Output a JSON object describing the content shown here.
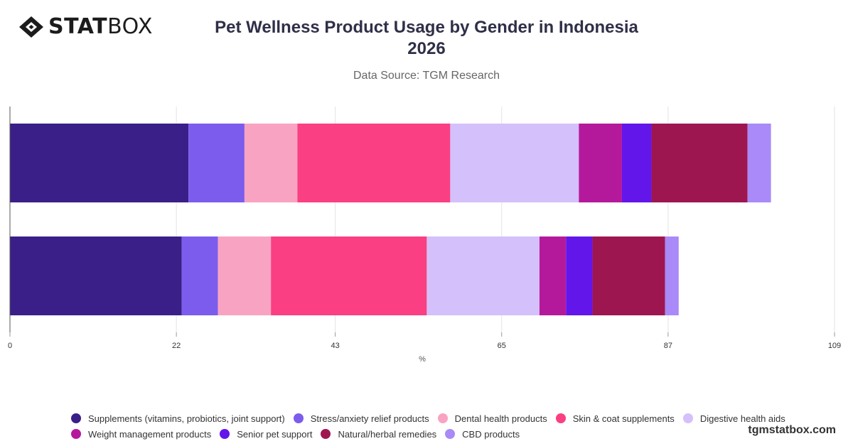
{
  "brand": {
    "stat": "STAT",
    "box": "BOX"
  },
  "header": {
    "title": "Pet Wellness Product Usage by Gender in Indonesia",
    "year": "2026",
    "subtitle": "Data Source: TGM Research"
  },
  "footer": {
    "site": "tgmstatbox.com"
  },
  "chart_data": {
    "type": "bar",
    "orientation": "horizontal",
    "stacked": true,
    "categories": [
      "",
      ""
    ],
    "xlabel": "%",
    "xlim": [
      0,
      109
    ],
    "xticks": [
      "0",
      "22",
      "43",
      "65",
      "87",
      "109"
    ],
    "grid": true,
    "legend_position": "bottom",
    "series": [
      {
        "name": "Supplements (vitamins, probiotics, joint support)",
        "color": "#3a1f88",
        "values": [
          23.6,
          22.7
        ]
      },
      {
        "name": "Stress/anxiety relief products",
        "color": "#7b5ced",
        "values": [
          7.4,
          4.8
        ]
      },
      {
        "name": "Dental health products",
        "color": "#f9a3c2",
        "values": [
          7.0,
          7.0
        ]
      },
      {
        "name": "Skin & coat supplements",
        "color": "#fa3f82",
        "values": [
          20.2,
          20.6
        ]
      },
      {
        "name": "Digestive health aids",
        "color": "#d4c0fb",
        "values": [
          17.0,
          14.9
        ]
      },
      {
        "name": "Weight management products",
        "color": "#b5199b",
        "values": [
          5.7,
          3.5
        ]
      },
      {
        "name": "Senior pet support",
        "color": "#6216ea",
        "values": [
          3.9,
          3.5
        ]
      },
      {
        "name": "Natural/herbal remedies",
        "color": "#9e1650",
        "values": [
          12.7,
          9.6
        ]
      },
      {
        "name": "CBD products",
        "color": "#a98af8",
        "values": [
          3.1,
          1.8
        ]
      }
    ]
  }
}
